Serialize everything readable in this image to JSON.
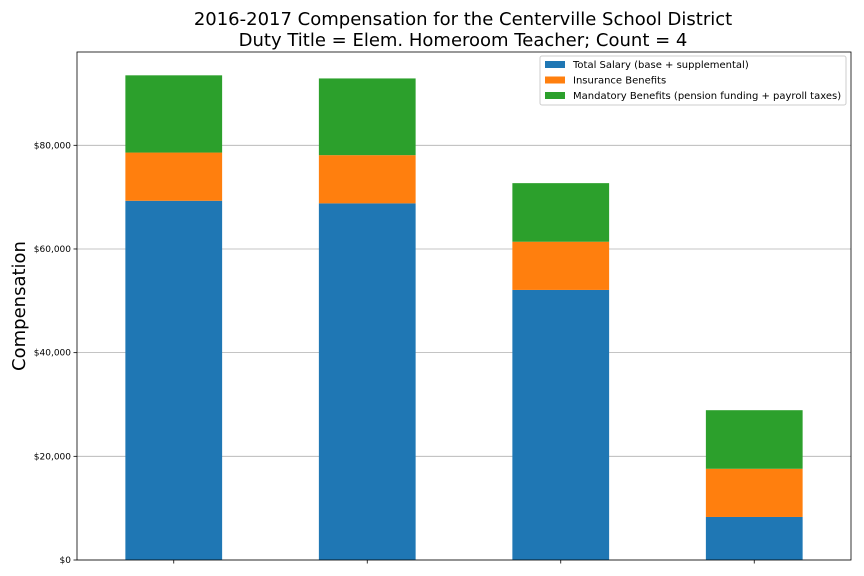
{
  "chart_data": {
    "type": "bar",
    "stacked": true,
    "title": "2016-2017 Compensation for the Centerville School District",
    "subtitle": "Duty Title = Elem. Homeroom Teacher; Count = 4",
    "ylabel": "Compensation",
    "ylim": [
      0,
      98000
    ],
    "yticks": [
      0,
      20000,
      40000,
      60000,
      80000
    ],
    "ytick_labels": [
      "$0",
      "$20,000",
      "$40,000",
      "$60,000",
      "$80,000"
    ],
    "categories": [
      "",
      "",
      "",
      ""
    ],
    "grid": "horizontal",
    "legend_position": "top-right",
    "series": [
      {
        "name": "Total Salary (base + supplemental)",
        "color": "#1f77b4",
        "values": [
          69300,
          68800,
          52100,
          8300
        ]
      },
      {
        "name": "Insurance Benefits",
        "color": "#ff7f0e",
        "values": [
          9300,
          9300,
          9300,
          9300
        ]
      },
      {
        "name": "Mandatory Benefits (pension funding + payroll taxes)",
        "color": "#2ca02c",
        "values": [
          14900,
          14800,
          11300,
          11300
        ]
      }
    ]
  }
}
